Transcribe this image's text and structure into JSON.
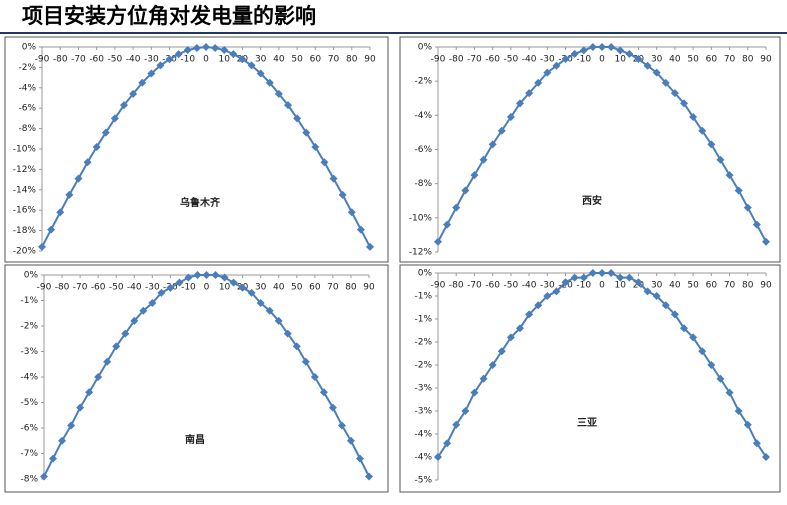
{
  "title": "项目安装方位角对发电量的影响",
  "chart_data": [
    {
      "type": "line",
      "title": "乌鲁木齐",
      "x": [
        -90,
        -85,
        -80,
        -75,
        -70,
        -65,
        -60,
        -55,
        -50,
        -45,
        -40,
        -35,
        -30,
        -25,
        -20,
        -15,
        -10,
        -5,
        0,
        5,
        10,
        15,
        20,
        25,
        30,
        35,
        40,
        45,
        50,
        55,
        60,
        65,
        70,
        75,
        80,
        85,
        90
      ],
      "xlim": [
        -90,
        90
      ],
      "xticks": [
        -90,
        -80,
        -70,
        -60,
        -50,
        -40,
        -30,
        -20,
        -10,
        0,
        10,
        20,
        30,
        40,
        50,
        60,
        70,
        80,
        90
      ],
      "ylim": [
        -20,
        0
      ],
      "yticks": [
        {
          "value": 0,
          "label": "0%"
        },
        {
          "value": -2,
          "label": "-2%"
        },
        {
          "value": -4,
          "label": "-4%"
        },
        {
          "value": -6,
          "label": "-6%"
        },
        {
          "value": -8,
          "label": "-8%"
        },
        {
          "value": -10,
          "label": "-10%"
        },
        {
          "value": -12,
          "label": "-12%"
        },
        {
          "value": -14,
          "label": "-14%"
        },
        {
          "value": -16,
          "label": "-16%"
        },
        {
          "value": -18,
          "label": "-18%"
        },
        {
          "value": -20,
          "label": "-20%"
        }
      ],
      "series": [
        {
          "color": "#4a7ebb",
          "values": [
            -19.6,
            -17.9,
            -16.2,
            -14.5,
            -12.9,
            -11.3,
            -9.8,
            -8.4,
            -7.0,
            -5.7,
            -4.6,
            -3.5,
            -2.6,
            -1.8,
            -1.2,
            -0.7,
            -0.3,
            -0.1,
            0,
            -0.1,
            -0.3,
            -0.7,
            -1.2,
            -1.8,
            -2.6,
            -3.5,
            -4.6,
            -5.7,
            -7.0,
            -8.4,
            -9.8,
            -11.3,
            -12.9,
            -14.5,
            -16.2,
            -17.9,
            -19.6
          ]
        }
      ]
    },
    {
      "type": "line",
      "title": "西安",
      "x": [
        -90,
        -85,
        -80,
        -75,
        -70,
        -65,
        -60,
        -55,
        -50,
        -45,
        -40,
        -35,
        -30,
        -25,
        -20,
        -15,
        -10,
        -5,
        0,
        5,
        10,
        15,
        20,
        25,
        30,
        35,
        40,
        45,
        50,
        55,
        60,
        65,
        70,
        75,
        80,
        85,
        90
      ],
      "xlim": [
        -90,
        90
      ],
      "xticks": [
        -90,
        -80,
        -70,
        -60,
        -50,
        -40,
        -30,
        -20,
        -10,
        0,
        10,
        20,
        30,
        40,
        50,
        60,
        70,
        80,
        90
      ],
      "ylim": [
        -12,
        0
      ],
      "yticks": [
        {
          "value": 0,
          "label": "0%"
        },
        {
          "value": -2,
          "label": "-2%"
        },
        {
          "value": -4,
          "label": "-4%"
        },
        {
          "value": -6,
          "label": "-6%"
        },
        {
          "value": -8,
          "label": "-8%"
        },
        {
          "value": -10,
          "label": "-10%"
        },
        {
          "value": -12,
          "label": "-12%"
        }
      ],
      "series": [
        {
          "color": "#4a7ebb",
          "values": [
            -11.4,
            -10.4,
            -9.4,
            -8.4,
            -7.5,
            -6.6,
            -5.7,
            -4.9,
            -4.1,
            -3.3,
            -2.7,
            -2.1,
            -1.5,
            -1.1,
            -0.7,
            -0.4,
            -0.2,
            0,
            0,
            0,
            -0.2,
            -0.4,
            -0.7,
            -1.1,
            -1.5,
            -2.1,
            -2.7,
            -3.3,
            -4.1,
            -4.9,
            -5.7,
            -6.6,
            -7.5,
            -8.4,
            -9.4,
            -10.4,
            -11.4
          ]
        }
      ]
    },
    {
      "type": "line",
      "title": "南昌",
      "x": [
        -90,
        -85,
        -80,
        -75,
        -70,
        -65,
        -60,
        -55,
        -50,
        -45,
        -40,
        -35,
        -30,
        -25,
        -20,
        -15,
        -10,
        -5,
        0,
        5,
        10,
        15,
        20,
        25,
        30,
        35,
        40,
        45,
        50,
        55,
        60,
        65,
        70,
        75,
        80,
        85,
        90
      ],
      "xlim": [
        -90,
        90
      ],
      "xticks": [
        -90,
        -80,
        -70,
        -60,
        -50,
        -40,
        -30,
        -20,
        -10,
        0,
        10,
        20,
        30,
        40,
        50,
        60,
        70,
        80,
        90
      ],
      "ylim": [
        -8,
        0
      ],
      "yticks": [
        {
          "value": 0,
          "label": "0%"
        },
        {
          "value": -1,
          "label": "-1%"
        },
        {
          "value": -2,
          "label": "-2%"
        },
        {
          "value": -3,
          "label": "-3%"
        },
        {
          "value": -4,
          "label": "-4%"
        },
        {
          "value": -5,
          "label": "-5%"
        },
        {
          "value": -6,
          "label": "-6%"
        },
        {
          "value": -7,
          "label": "-7%"
        },
        {
          "value": -8,
          "label": "-8%"
        }
      ],
      "series": [
        {
          "color": "#4a7ebb",
          "values": [
            -7.9,
            -7.2,
            -6.5,
            -5.9,
            -5.2,
            -4.6,
            -4.0,
            -3.4,
            -2.8,
            -2.3,
            -1.8,
            -1.4,
            -1.1,
            -0.7,
            -0.5,
            -0.3,
            -0.1,
            0,
            0,
            0,
            -0.1,
            -0.3,
            -0.5,
            -0.7,
            -1.1,
            -1.4,
            -1.8,
            -2.3,
            -2.8,
            -3.4,
            -4.0,
            -4.6,
            -5.2,
            -5.9,
            -6.5,
            -7.2,
            -7.9
          ]
        }
      ]
    },
    {
      "type": "line",
      "title": "三亚",
      "x": [
        -90,
        -85,
        -80,
        -75,
        -70,
        -65,
        -60,
        -55,
        -50,
        -45,
        -40,
        -35,
        -30,
        -25,
        -20,
        -15,
        -10,
        -5,
        0,
        5,
        10,
        15,
        20,
        25,
        30,
        35,
        40,
        45,
        50,
        55,
        60,
        65,
        70,
        75,
        80,
        85,
        90
      ],
      "xlim": [
        -90,
        90
      ],
      "xticks": [
        -90,
        -80,
        -70,
        -60,
        -50,
        -40,
        -30,
        -20,
        -10,
        0,
        10,
        20,
        30,
        40,
        50,
        60,
        70,
        80,
        90
      ],
      "ylim": [
        -4.5,
        0
      ],
      "yticks": [
        {
          "value": 0,
          "label": "0%"
        },
        {
          "value": -0.5,
          "label": "-1%"
        },
        {
          "value": -1,
          "label": "-1%"
        },
        {
          "value": -1.5,
          "label": "-2%"
        },
        {
          "value": -2,
          "label": "-2%"
        },
        {
          "value": -2.5,
          "label": "-3%"
        },
        {
          "value": -3,
          "label": "-3%"
        },
        {
          "value": -3.5,
          "label": "-4%"
        },
        {
          "value": -4,
          "label": "-4%"
        },
        {
          "value": -4.5,
          "label": "-5%"
        }
      ],
      "series": [
        {
          "color": "#4a7ebb",
          "values": [
            -4.0,
            -3.7,
            -3.3,
            -3.0,
            -2.6,
            -2.3,
            -2.0,
            -1.7,
            -1.4,
            -1.2,
            -0.9,
            -0.7,
            -0.5,
            -0.4,
            -0.2,
            -0.1,
            -0.1,
            0,
            0,
            0,
            -0.1,
            -0.1,
            -0.2,
            -0.4,
            -0.5,
            -0.7,
            -0.9,
            -1.2,
            -1.4,
            -1.7,
            -2.0,
            -2.3,
            -2.6,
            -3.0,
            -3.3,
            -3.7,
            -4.0
          ]
        }
      ]
    }
  ]
}
